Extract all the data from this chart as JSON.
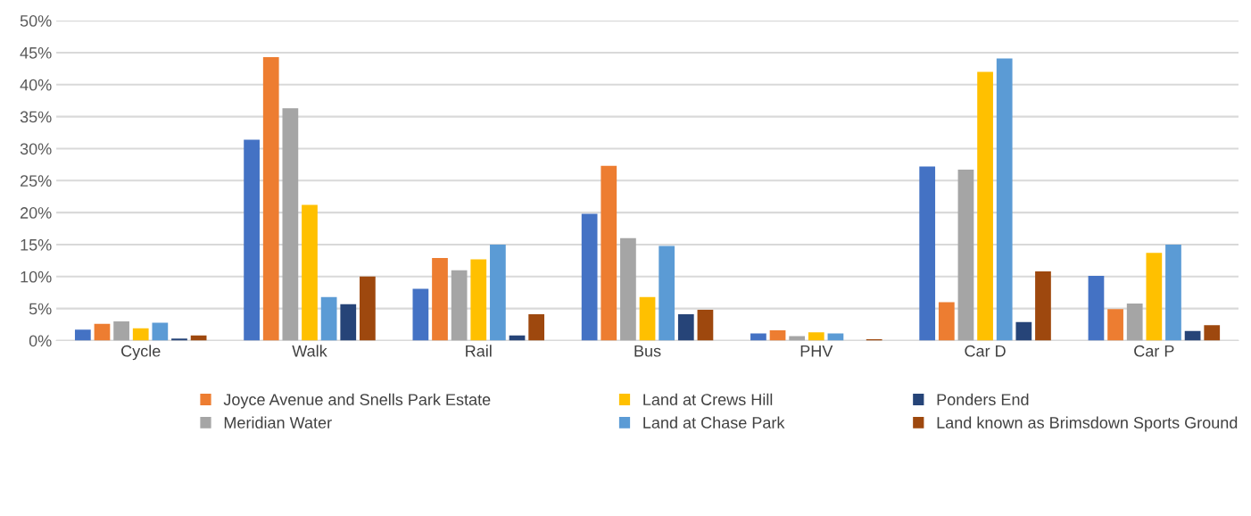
{
  "chart_data": {
    "type": "bar",
    "categories": [
      "Cycle",
      "Walk",
      "Rail",
      "Bus",
      "PHV",
      "Car D",
      "Car P"
    ],
    "ylim": [
      0,
      50
    ],
    "yticks": [
      {
        "value": 0,
        "label": "0%"
      },
      {
        "value": 5,
        "label": "5%"
      },
      {
        "value": 10,
        "label": "10%"
      },
      {
        "value": 15,
        "label": "15%"
      },
      {
        "value": 20,
        "label": "20%"
      },
      {
        "value": 25,
        "label": "25%"
      },
      {
        "value": 30,
        "label": "30%"
      },
      {
        "value": 35,
        "label": "35%"
      },
      {
        "value": 40,
        "label": "40%"
      },
      {
        "value": 45,
        "label": "45%"
      },
      {
        "value": 50,
        "label": "50%"
      }
    ],
    "grid": "y",
    "legend": "bottom",
    "series": [
      {
        "color": "#4472c4",
        "values": [
          1.7,
          31.4,
          8.1,
          19.8,
          1.1,
          27.2,
          10.1
        ]
      },
      {
        "name": "Joyce Avenue and Snells Park Estate",
        "color": "#ed7d31",
        "values": [
          2.6,
          44.3,
          12.9,
          27.3,
          1.6,
          6.0,
          4.9
        ]
      },
      {
        "name": "Meridian Water",
        "color": "#a5a5a5",
        "values": [
          3.0,
          36.3,
          11.0,
          16.0,
          0.7,
          26.7,
          5.8
        ]
      },
      {
        "name": "Land at Crews Hill",
        "color": "#ffc000",
        "values": [
          1.9,
          21.2,
          12.7,
          6.8,
          1.3,
          42.0,
          13.7
        ]
      },
      {
        "name": "Land at Chase Park",
        "color": "#5b9bd5",
        "values": [
          2.8,
          6.8,
          15.0,
          14.8,
          1.1,
          44.1,
          15.0
        ]
      },
      {
        "name": "Ponders End",
        "color": "#264478",
        "values": [
          0.3,
          5.7,
          0.8,
          4.1,
          0,
          2.9,
          1.5
        ]
      },
      {
        "name": "Land known as Brimsdown Sports Ground",
        "color": "#9e480e",
        "values": [
          0.8,
          10.0,
          4.1,
          4.8,
          0.2,
          10.8,
          2.4
        ]
      }
    ]
  }
}
